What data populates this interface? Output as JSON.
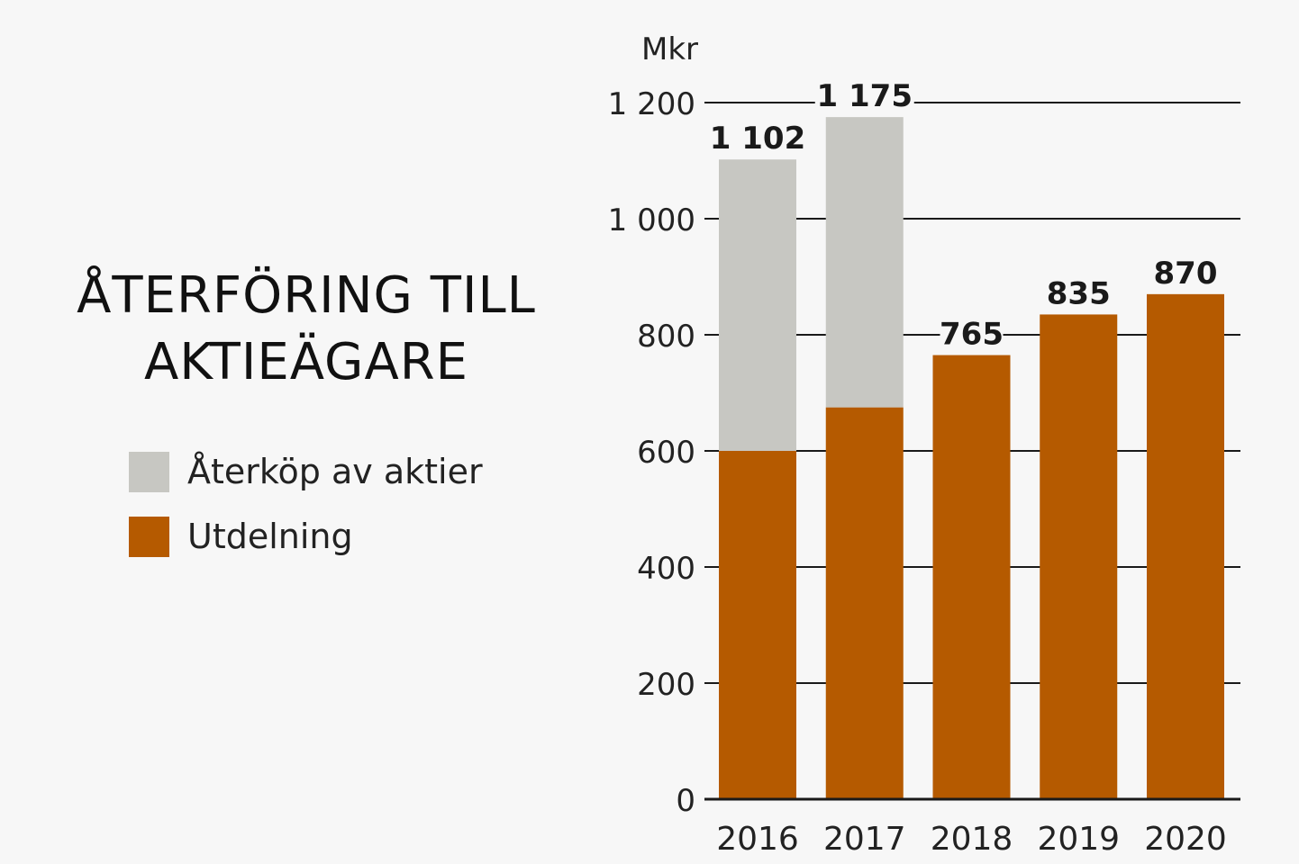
{
  "title": {
    "line1": "ÅTERFÖRING TILL",
    "line2": "AKTIEÄGARE"
  },
  "legend": [
    {
      "label": "Återköp av aktier",
      "color": "#c7c7c2"
    },
    {
      "label": "Utdelning",
      "color": "#b55a00"
    }
  ],
  "chart_data": {
    "type": "bar",
    "stacked": true,
    "title": "ÅTERFÖRING TILL AKTIEÄGARE",
    "ylabel": "Mkr",
    "xlabel": "",
    "ylim": [
      0,
      1200
    ],
    "yticks": [
      0,
      200,
      400,
      600,
      800,
      1000,
      1200
    ],
    "ytick_labels": [
      "0",
      "200",
      "400",
      "600",
      "800",
      "1 000",
      "1 200"
    ],
    "categories": [
      "2016",
      "2017",
      "2018",
      "2019",
      "2020"
    ],
    "series": [
      {
        "name": "Utdelning",
        "color": "#b55a00",
        "values": [
          600,
          675,
          765,
          835,
          870
        ]
      },
      {
        "name": "Återköp av aktier",
        "color": "#c7c7c2",
        "values": [
          502,
          500,
          0,
          0,
          0
        ]
      }
    ],
    "totals": [
      1102,
      1175,
      765,
      835,
      870
    ],
    "total_labels": [
      "1 102",
      "1 175",
      "765",
      "835",
      "870"
    ],
    "grid": true
  }
}
